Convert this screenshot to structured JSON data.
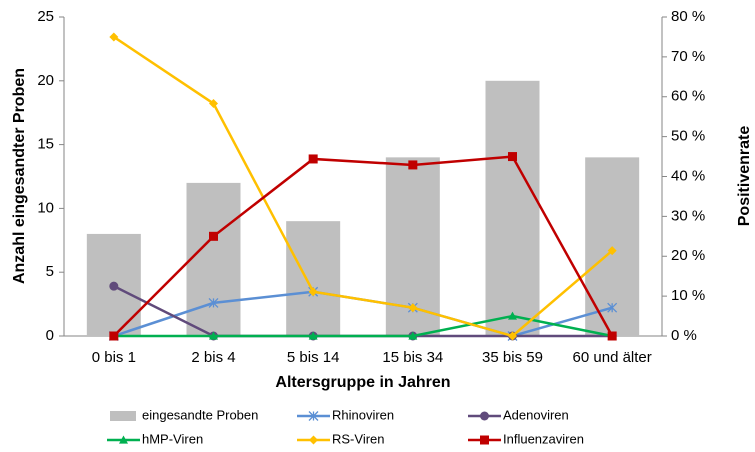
{
  "chart_data": {
    "type": "combo",
    "categories": [
      "0 bis 1",
      "2 bis 4",
      "5 bis 14",
      "15 bis 34",
      "35 bis 59",
      "60 und älter"
    ],
    "xlabel": "Altersgruppe in Jahren",
    "ylabel": "Anzahl eingesandter Proben",
    "y2label": "Positivenrate",
    "ylim": [
      0,
      25
    ],
    "yticks": [
      0,
      5,
      10,
      15,
      20,
      25
    ],
    "y2lim": [
      0,
      80
    ],
    "y2ticks": [
      {
        "value": 0,
        "label": "0 %"
      },
      {
        "value": 10,
        "label": "10 %"
      },
      {
        "value": 20,
        "label": "20 %"
      },
      {
        "value": 30,
        "label": "30 %"
      },
      {
        "value": 40,
        "label": "40 %"
      },
      {
        "value": 50,
        "label": "50 %"
      },
      {
        "value": 60,
        "label": "60 %"
      },
      {
        "value": 70,
        "label": "70 %"
      },
      {
        "value": 80,
        "label": "80 %"
      }
    ],
    "grid": false,
    "series": [
      {
        "name": "eingesandte Proben",
        "type": "bar",
        "axis": "y",
        "color": "#bfbfbf",
        "values": [
          8,
          12,
          9,
          14,
          20,
          14
        ]
      },
      {
        "name": "Rhinoviren",
        "type": "line",
        "axis": "y2",
        "marker": "asterisk",
        "color": "#5b8fd4",
        "values": [
          0,
          8.3,
          11.1,
          7.1,
          0,
          7.1
        ]
      },
      {
        "name": "Adenoviren",
        "type": "line",
        "axis": "y2",
        "marker": "circle",
        "color": "#604a7b",
        "values": [
          12.5,
          0,
          0,
          0,
          0,
          0
        ]
      },
      {
        "name": "hMP-Viren",
        "type": "line",
        "axis": "y2",
        "marker": "triangle",
        "color": "#00b050",
        "values": [
          0,
          0,
          0,
          0,
          5,
          0
        ]
      },
      {
        "name": "RS-Viren",
        "type": "line",
        "axis": "y2",
        "marker": "diamond",
        "color": "#ffc000",
        "values": [
          75,
          58.3,
          11.1,
          7.1,
          0,
          21.4
        ]
      },
      {
        "name": "Influenzaviren",
        "type": "line",
        "axis": "y2",
        "marker": "square",
        "color": "#c00000",
        "values": [
          0,
          25,
          44.4,
          42.9,
          45,
          0
        ]
      }
    ]
  }
}
